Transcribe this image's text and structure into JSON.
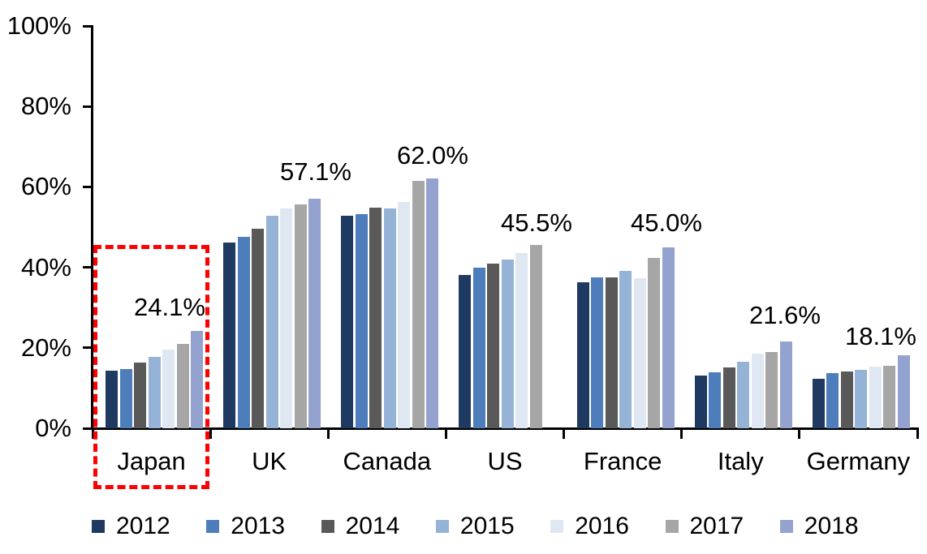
{
  "chart_data": {
    "type": "bar",
    "title": "",
    "categories": [
      "Japan",
      "UK",
      "Canada",
      "US",
      "France",
      "Italy",
      "Germany"
    ],
    "series": [
      {
        "name": "2012",
        "color": "#1F3A60",
        "values": [
          14.4,
          46.2,
          52.9,
          38.2,
          36.3,
          13.2,
          12.3
        ]
      },
      {
        "name": "2013",
        "color": "#4D7EBB",
        "values": [
          14.8,
          47.5,
          53.3,
          40.0,
          37.6,
          13.9,
          13.8
        ]
      },
      {
        "name": "2014",
        "color": "#595959",
        "values": [
          16.3,
          49.6,
          54.8,
          40.9,
          37.5,
          15.2,
          14.1
        ]
      },
      {
        "name": "2015",
        "color": "#95B3D7",
        "values": [
          17.8,
          52.9,
          54.6,
          41.9,
          39.2,
          16.6,
          14.5
        ]
      },
      {
        "name": "2016",
        "color": "#DEE7F2",
        "values": [
          19.6,
          54.6,
          56.2,
          43.5,
          37.3,
          18.6,
          15.3
        ]
      },
      {
        "name": "2017",
        "color": "#A6A6A6",
        "values": [
          20.9,
          55.7,
          61.5,
          45.5,
          42.3,
          18.9,
          15.6
        ]
      },
      {
        "name": "2018",
        "color": "#93A2CE",
        "values": [
          24.1,
          57.1,
          62.0,
          null,
          45.0,
          21.6,
          18.1
        ]
      }
    ],
    "data_labels": [
      {
        "category": "Japan",
        "text": "24.1%"
      },
      {
        "category": "UK",
        "text": "57.1%"
      },
      {
        "category": "Canada",
        "text": "62.0%"
      },
      {
        "category": "US",
        "text": "45.5%"
      },
      {
        "category": "France",
        "text": "45.0%"
      },
      {
        "category": "Italy",
        "text": "21.6%"
      },
      {
        "category": "Germany",
        "text": "18.1%"
      }
    ],
    "y_axis": {
      "tick_labels": [
        "0%",
        "20%",
        "40%",
        "60%",
        "80%",
        "100%"
      ],
      "min": 0,
      "max": 100,
      "unit": "%"
    },
    "legend_position": "bottom",
    "grid": false,
    "annotation": {
      "type": "dashed-outline-box",
      "highlights": "Japan",
      "color": "#FF0000"
    }
  }
}
